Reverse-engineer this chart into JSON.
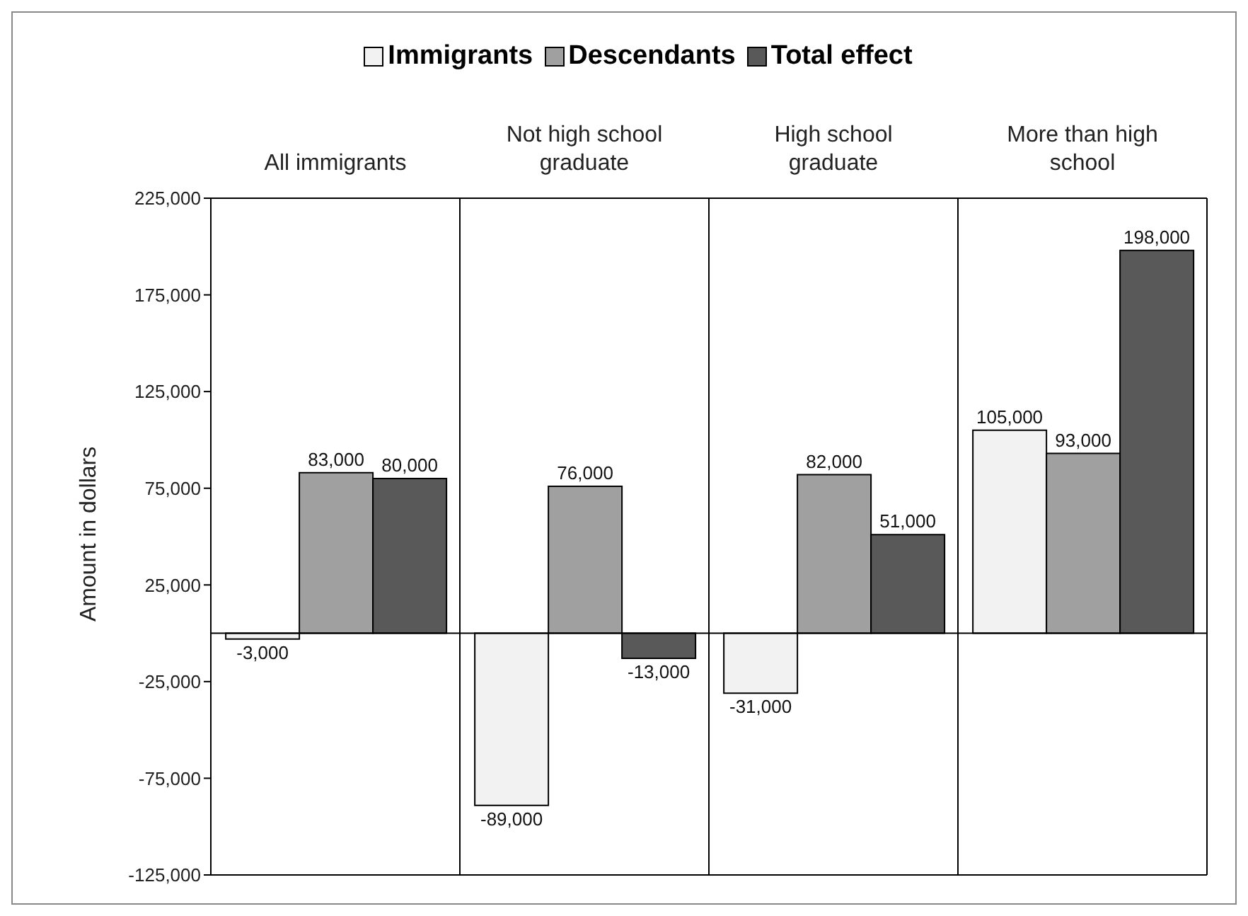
{
  "chart_data": {
    "type": "bar",
    "ylabel": "Amount in dollars",
    "categories": [
      "All immigrants",
      "Not high school graduate",
      "High school graduate",
      "More than high school"
    ],
    "series": [
      {
        "name": "Immigrants",
        "color": "#f2f2f2",
        "values": [
          -3000,
          -89000,
          -31000,
          105000
        ],
        "value_labels": [
          "-3,000",
          "-89,000",
          "-31,000",
          "105,000"
        ]
      },
      {
        "name": "Descendants",
        "color": "#a0a0a0",
        "values": [
          83000,
          76000,
          82000,
          93000
        ],
        "value_labels": [
          "83,000",
          "76,000",
          "82,000",
          "93,000"
        ]
      },
      {
        "name": "Total effect",
        "color": "#595959",
        "values": [
          80000,
          -13000,
          51000,
          198000
        ],
        "value_labels": [
          "80,000",
          "-13,000",
          "51,000",
          "198,000"
        ]
      }
    ],
    "ylim": [
      -125000,
      225000
    ],
    "yticks": [
      {
        "value": -125000,
        "label": "-125,000"
      },
      {
        "value": -75000,
        "label": "-75,000"
      },
      {
        "value": -25000,
        "label": "-25,000"
      },
      {
        "value": 25000,
        "label": "25,000"
      },
      {
        "value": 75000,
        "label": "75,000"
      },
      {
        "value": 125000,
        "label": "125,000"
      },
      {
        "value": 175000,
        "label": "175,000"
      },
      {
        "value": 225000,
        "label": "225,000"
      }
    ],
    "grid": "x",
    "legend": "top"
  }
}
